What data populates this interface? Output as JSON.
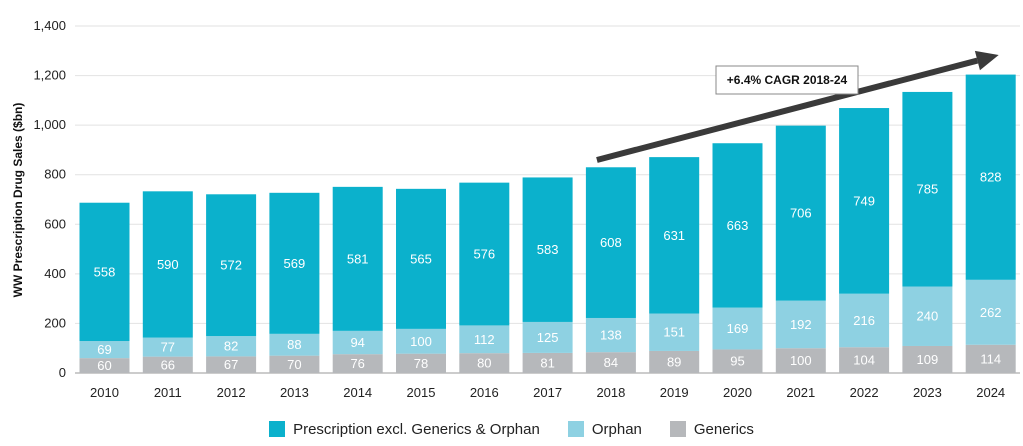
{
  "chart_data": {
    "type": "bar",
    "stacked": true,
    "ylabel": "WW Prescription Drug Sales ($bn)",
    "ylim": [
      0,
      1400
    ],
    "yticks": [
      "0",
      "200",
      "400",
      "600",
      "800",
      "1,000",
      "1,200",
      "1,400"
    ],
    "ytick_values": [
      0,
      200,
      400,
      600,
      800,
      1000,
      1200,
      1400
    ],
    "grid": true,
    "legend_position": "bottom",
    "categories": [
      "2010",
      "2011",
      "2012",
      "2013",
      "2014",
      "2015",
      "2016",
      "2017",
      "2018",
      "2019",
      "2020",
      "2021",
      "2022",
      "2023",
      "2024"
    ],
    "series": [
      {
        "name": "Generics",
        "color": "#b6b8bb",
        "values": [
          60,
          66,
          67,
          70,
          76,
          78,
          80,
          81,
          84,
          89,
          95,
          100,
          104,
          109,
          114
        ]
      },
      {
        "name": "Orphan",
        "color": "#8ed1e2",
        "values": [
          69,
          77,
          82,
          88,
          94,
          100,
          112,
          125,
          138,
          151,
          169,
          192,
          216,
          240,
          262
        ]
      },
      {
        "name": "Prescription excl. Generics & Orphan",
        "color": "#0bb1cc",
        "values": [
          558,
          590,
          572,
          569,
          581,
          565,
          576,
          583,
          608,
          631,
          663,
          706,
          749,
          785,
          828
        ]
      }
    ],
    "annotation": {
      "text": "+6.4% CAGR 2018-24",
      "arrow_from_category": "2018",
      "arrow_to_category": "2024"
    }
  },
  "legend_items": [
    {
      "label": "Prescription excl. Generics & Orphan",
      "color": "#0bb1cc"
    },
    {
      "label": "Orphan",
      "color": "#8ed1e2"
    },
    {
      "label": "Generics",
      "color": "#b6b8bb"
    }
  ]
}
